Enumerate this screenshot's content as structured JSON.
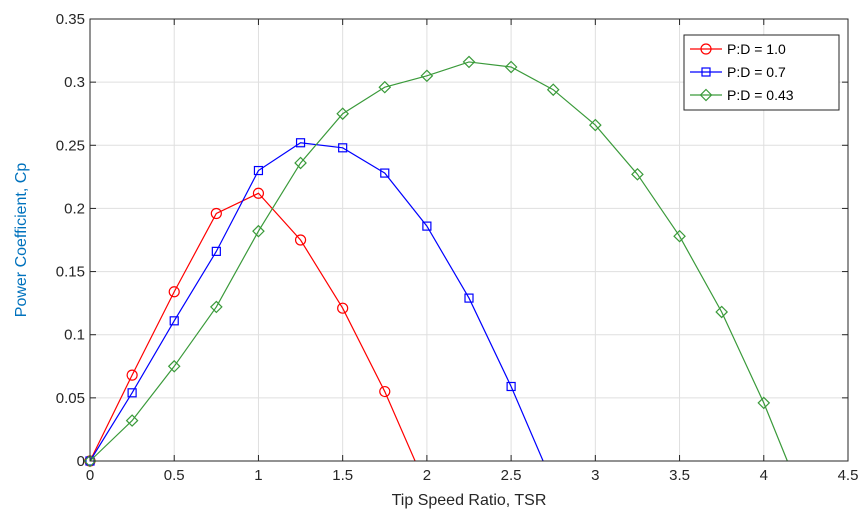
{
  "chart_data": {
    "type": "line",
    "title": "",
    "xlabel": "Tip Speed Ratio, TSR",
    "ylabel": "Power Coefficient, Cp",
    "xlim": [
      0,
      4.5
    ],
    "ylim": [
      0,
      0.35
    ],
    "xticks": [
      "0",
      "0.5",
      "1",
      "1.5",
      "2",
      "2.5",
      "3",
      "3.5",
      "4",
      "4.5"
    ],
    "yticks": [
      "0",
      "0.05",
      "0.1",
      "0.15",
      "0.2",
      "0.25",
      "0.3",
      "0.35"
    ],
    "grid": true,
    "legend_position": "top-right",
    "ylabel_color": "#0072bd",
    "series": [
      {
        "name": "P:D = 1.0",
        "color": "#ff0000",
        "marker": "circle",
        "x": [
          0,
          0.25,
          0.5,
          0.75,
          1.0,
          1.25,
          1.5,
          1.75,
          1.93
        ],
        "y": [
          0,
          0.068,
          0.134,
          0.196,
          0.212,
          0.175,
          0.121,
          0.055,
          0
        ],
        "marker_count": 8
      },
      {
        "name": "P:D = 0.7",
        "color": "#0000ff",
        "marker": "square",
        "x": [
          0,
          0.25,
          0.5,
          0.75,
          1.0,
          1.25,
          1.5,
          1.75,
          2.0,
          2.25,
          2.5,
          2.69
        ],
        "y": [
          0,
          0.054,
          0.111,
          0.166,
          0.23,
          0.252,
          0.248,
          0.228,
          0.186,
          0.129,
          0.059,
          0
        ],
        "marker_count": 11
      },
      {
        "name": "P:D = 0.43",
        "color": "#3a9a3a",
        "marker": "diamond",
        "x": [
          0,
          0.25,
          0.5,
          0.75,
          1.0,
          1.25,
          1.5,
          1.75,
          2.0,
          2.25,
          2.5,
          2.75,
          3.0,
          3.25,
          3.5,
          3.75,
          4.0,
          4.14
        ],
        "y": [
          0,
          0.032,
          0.075,
          0.122,
          0.182,
          0.236,
          0.275,
          0.296,
          0.305,
          0.316,
          0.312,
          0.294,
          0.266,
          0.227,
          0.178,
          0.118,
          0.046,
          0
        ],
        "marker_count": 17
      }
    ]
  }
}
